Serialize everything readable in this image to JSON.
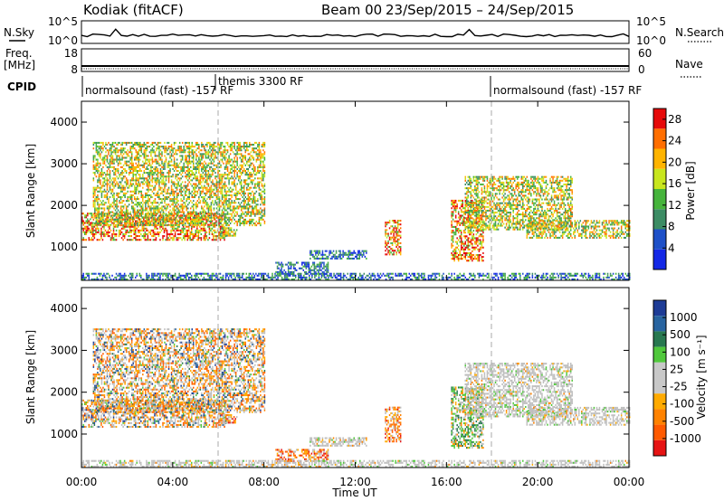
{
  "header": {
    "station": "Kodiak (fitACF)",
    "beam": "Beam 00",
    "date_range": "23/Sep/2015 – 24/Sep/2015"
  },
  "aux_panels": {
    "nsky_label": "N.Sky",
    "nsearch_label": "N.Search",
    "nsky_ticks": [
      "10^5",
      "10^0"
    ],
    "nsearch_ticks": [
      "10^5",
      "10^0"
    ],
    "freq_label_1": "Freq.",
    "freq_label_2": "[MHz]",
    "freq_ticks": [
      "18",
      "8"
    ],
    "nave_label": "Nave",
    "nave_ticks": [
      "60",
      "0"
    ],
    "cpid_label": "CPID",
    "cpid_segments": [
      {
        "start_h": 0,
        "label": "normalsound (fast) -157 RF"
      },
      {
        "start_h": 6,
        "label": "themis 3300 RF"
      },
      {
        "start_h": 18,
        "label": "normalsound (fast) -157 RF"
      }
    ]
  },
  "colors": {
    "power": [
      "#1428e6",
      "#1e50c8",
      "#3c8c64",
      "#46b43c",
      "#c8e61e",
      "#ffb400",
      "#ff6e00",
      "#e60a0a"
    ],
    "velocity_pos": [
      "#1e3c96",
      "#2864a0",
      "#287850",
      "#50c83c"
    ],
    "velocity_neutral": "#c8c8c8",
    "velocity_neg": [
      "#ffaa00",
      "#ff8200",
      "#ff5a00",
      "#e61414"
    ],
    "ground_scatter": "#bebebe"
  },
  "chart_data": [
    {
      "type": "heatmap",
      "name": "power",
      "xlabel": "",
      "ylabel": "Slant Range [km]",
      "x_range_hours": [
        0,
        24
      ],
      "ylim": [
        200,
        4500
      ],
      "y_ticks": [
        1000,
        2000,
        3000,
        4000
      ],
      "x_ticks": [
        "00:00",
        "04:00",
        "08:00",
        "12:00",
        "16:00",
        "20:00",
        "00:00"
      ],
      "colorbar_label": "Power [dB]",
      "colorbar_ticks": [
        "4",
        "8",
        "12",
        "16",
        "20",
        "24",
        "28"
      ],
      "colorbar_range": [
        0,
        30
      ],
      "echo_regions": [
        {
          "t0": 0.0,
          "t1": 6.3,
          "r0": 1150,
          "r1": 1800,
          "level": "high",
          "mix": "v"
        },
        {
          "t0": 0.5,
          "t1": 8.0,
          "r0": 1500,
          "r1": 3500,
          "level": "mid",
          "mix": "v"
        },
        {
          "t0": 6.0,
          "t1": 6.8,
          "r0": 1250,
          "r1": 1450,
          "level": "mid",
          "mix": "neg"
        },
        {
          "t0": 8.5,
          "t1": 10.8,
          "r0": 330,
          "r1": 620,
          "level": "low",
          "mix": "neg"
        },
        {
          "t0": 10.0,
          "t1": 12.5,
          "r0": 700,
          "r1": 900,
          "level": "low",
          "mix": "g"
        },
        {
          "t0": 13.3,
          "t1": 14.0,
          "r0": 800,
          "r1": 1650,
          "level": "high",
          "mix": "neg"
        },
        {
          "t0": 16.2,
          "t1": 17.6,
          "r0": 650,
          "r1": 2100,
          "level": "high",
          "mix": "pos"
        },
        {
          "t0": 16.8,
          "t1": 21.5,
          "r0": 1400,
          "r1": 2700,
          "level": "mid",
          "mix": "g"
        },
        {
          "t0": 19.5,
          "t1": 24.0,
          "r0": 1200,
          "r1": 1650,
          "level": "mid",
          "mix": "g"
        },
        {
          "t0": 0.0,
          "t1": 24.0,
          "r0": 200,
          "r1": 380,
          "level": "low",
          "mix": "g"
        }
      ]
    },
    {
      "type": "heatmap",
      "name": "velocity",
      "xlabel": "Time UT",
      "ylabel": "Slant Range [km]",
      "x_range_hours": [
        0,
        24
      ],
      "ylim": [
        200,
        4500
      ],
      "y_ticks": [
        1000,
        2000,
        3000,
        4000
      ],
      "x_ticks": [
        "00:00",
        "04:00",
        "08:00",
        "12:00",
        "16:00",
        "20:00",
        "00:00"
      ],
      "colorbar_label": "Velocity [m s⁻¹]",
      "colorbar_ticks": [
        "1000",
        "500",
        "100",
        "25",
        "-25",
        "-100",
        "-500",
        "-1000"
      ],
      "colorbar_range": [
        -1000,
        1000
      ]
    }
  ]
}
